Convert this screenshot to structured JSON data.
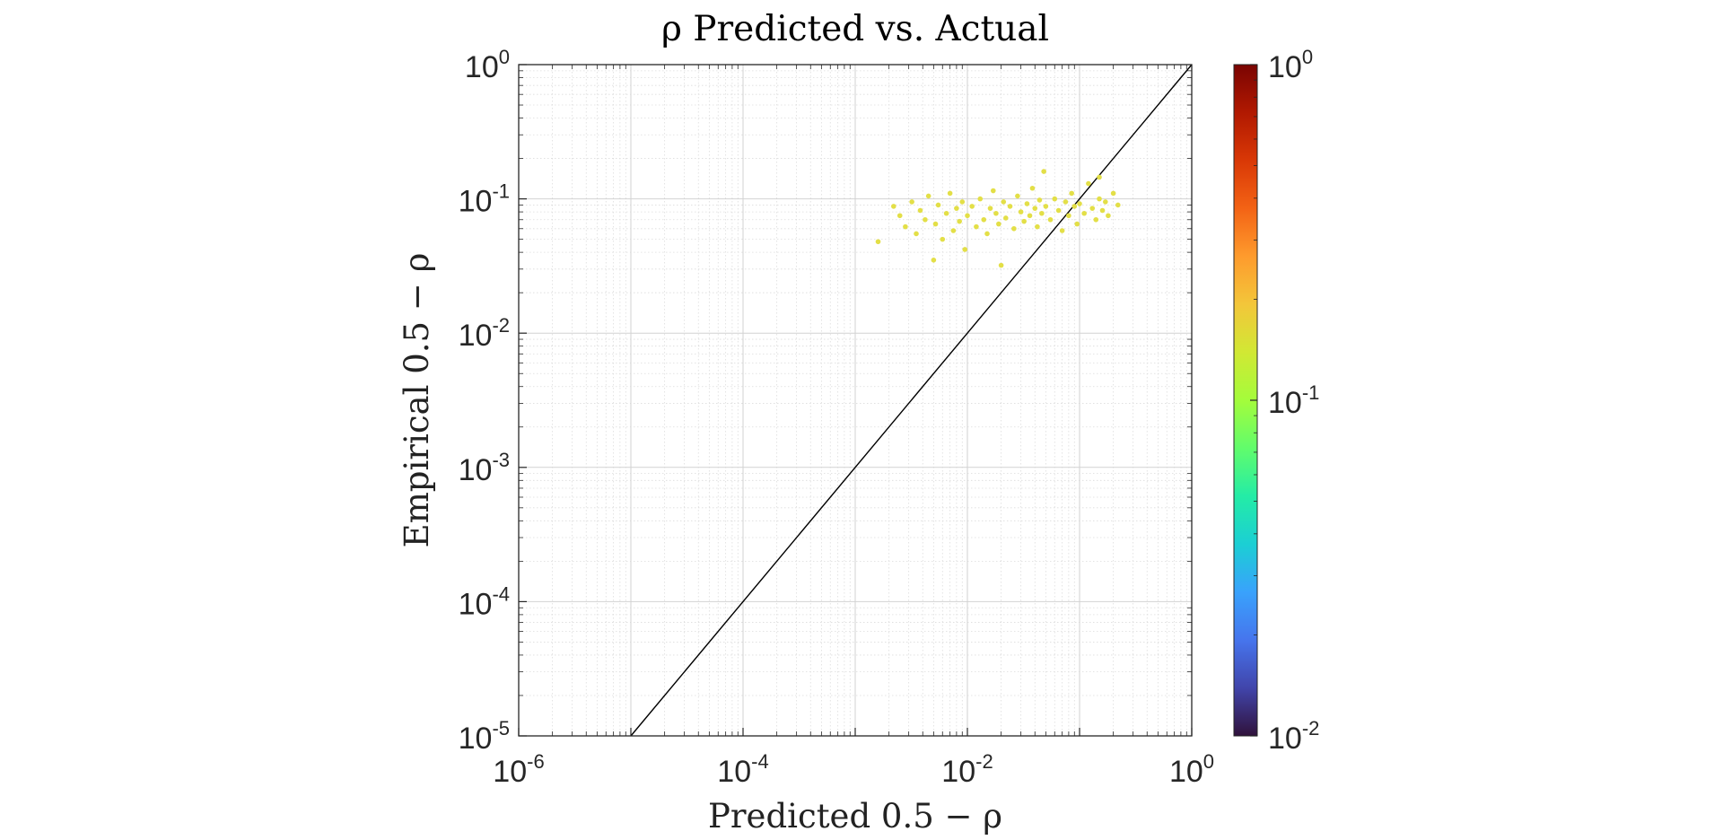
{
  "chart_data": {
    "type": "scatter",
    "title": "ρ Predicted vs. Actual",
    "xlabel": "Predicted 0.5 − ρ",
    "ylabel": "Empirical 0.5 − ρ",
    "x_scale": "log",
    "y_scale": "log",
    "xlim": [
      1e-06,
      1
    ],
    "ylim": [
      1e-05,
      1
    ],
    "x_ticks": [
      {
        "base": "10",
        "exp": "-6"
      },
      {
        "base": "10",
        "exp": "-4"
      },
      {
        "base": "10",
        "exp": "-2"
      },
      {
        "base": "10",
        "exp": "0"
      }
    ],
    "y_ticks": [
      {
        "base": "10",
        "exp": "-5"
      },
      {
        "base": "10",
        "exp": "-4"
      },
      {
        "base": "10",
        "exp": "-3"
      },
      {
        "base": "10",
        "exp": "-2"
      },
      {
        "base": "10",
        "exp": "-1"
      },
      {
        "base": "10",
        "exp": "0"
      }
    ],
    "grid": true,
    "reference_line": {
      "type": "y=x",
      "color": "#000000"
    },
    "colorbar": {
      "scale": "log",
      "lim": [
        0.01,
        1
      ],
      "colormap": "turbo",
      "ticks": [
        {
          "base": "10",
          "exp": "-2"
        },
        {
          "base": "10",
          "exp": "-1"
        },
        {
          "base": "10",
          "exp": "0"
        }
      ]
    },
    "point_color": "#e3df47",
    "series": [
      {
        "points": [
          [
            0.0016,
            0.048
          ],
          [
            0.0022,
            0.088
          ],
          [
            0.0025,
            0.075
          ],
          [
            0.0028,
            0.062
          ],
          [
            0.0032,
            0.095
          ],
          [
            0.0035,
            0.055
          ],
          [
            0.0038,
            0.082
          ],
          [
            0.0042,
            0.07
          ],
          [
            0.0045,
            0.105
          ],
          [
            0.005,
            0.035
          ],
          [
            0.0052,
            0.065
          ],
          [
            0.0055,
            0.09
          ],
          [
            0.006,
            0.05
          ],
          [
            0.0065,
            0.078
          ],
          [
            0.007,
            0.11
          ],
          [
            0.0075,
            0.058
          ],
          [
            0.008,
            0.085
          ],
          [
            0.0085,
            0.068
          ],
          [
            0.009,
            0.095
          ],
          [
            0.0095,
            0.042
          ],
          [
            0.01,
            0.075
          ],
          [
            0.011,
            0.088
          ],
          [
            0.012,
            0.062
          ],
          [
            0.013,
            0.1
          ],
          [
            0.014,
            0.07
          ],
          [
            0.015,
            0.055
          ],
          [
            0.016,
            0.085
          ],
          [
            0.017,
            0.115
          ],
          [
            0.018,
            0.078
          ],
          [
            0.019,
            0.065
          ],
          [
            0.02,
            0.032
          ],
          [
            0.021,
            0.095
          ],
          [
            0.022,
            0.072
          ],
          [
            0.024,
            0.088
          ],
          [
            0.026,
            0.06
          ],
          [
            0.028,
            0.105
          ],
          [
            0.03,
            0.08
          ],
          [
            0.032,
            0.068
          ],
          [
            0.034,
            0.092
          ],
          [
            0.036,
            0.075
          ],
          [
            0.038,
            0.12
          ],
          [
            0.04,
            0.085
          ],
          [
            0.042,
            0.062
          ],
          [
            0.044,
            0.098
          ],
          [
            0.046,
            0.078
          ],
          [
            0.048,
            0.16
          ],
          [
            0.05,
            0.088
          ],
          [
            0.055,
            0.07
          ],
          [
            0.06,
            0.1
          ],
          [
            0.065,
            0.082
          ],
          [
            0.07,
            0.058
          ],
          [
            0.075,
            0.095
          ],
          [
            0.08,
            0.075
          ],
          [
            0.085,
            0.11
          ],
          [
            0.09,
            0.088
          ],
          [
            0.095,
            0.065
          ],
          [
            0.1,
            0.092
          ],
          [
            0.11,
            0.078
          ],
          [
            0.12,
            0.13
          ],
          [
            0.13,
            0.085
          ],
          [
            0.14,
            0.07
          ],
          [
            0.15,
            0.1
          ],
          [
            0.16,
            0.082
          ],
          [
            0.17,
            0.095
          ],
          [
            0.18,
            0.075
          ],
          [
            0.2,
            0.11
          ],
          [
            0.22,
            0.09
          ],
          [
            0.15,
            0.145
          ]
        ]
      }
    ]
  }
}
